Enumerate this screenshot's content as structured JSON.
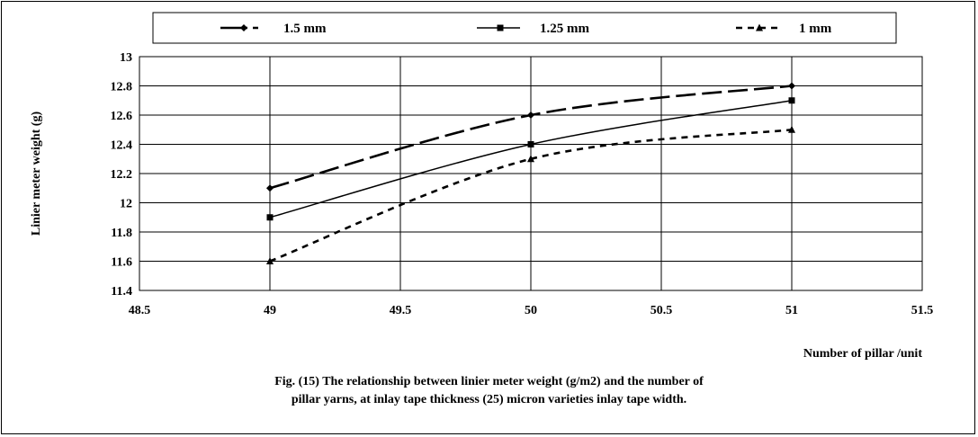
{
  "chart_data": {
    "type": "line",
    "x": [
      49,
      50,
      51
    ],
    "series": [
      {
        "name": "1.5 mm",
        "values": [
          12.1,
          12.6,
          12.8
        ],
        "style": "long-dash",
        "marker": "diamond"
      },
      {
        "name": "1.25 mm",
        "values": [
          11.9,
          12.4,
          12.7
        ],
        "style": "solid",
        "marker": "square"
      },
      {
        "name": "1 mm",
        "values": [
          11.6,
          12.3,
          12.5
        ],
        "style": "short-dash",
        "marker": "triangle"
      }
    ],
    "xlim": [
      48.5,
      51.5
    ],
    "ylim": [
      11.4,
      13
    ],
    "x_ticks": [
      "48.5",
      "49",
      "49.5",
      "50",
      "50.5",
      "51",
      "51.5"
    ],
    "y_ticks": [
      "13",
      "12.8",
      "12.6",
      "12.4",
      "12.2",
      "12",
      "11.8",
      "11.6",
      "11.4"
    ],
    "xlabel": "Number of pillar /unit",
    "ylabel": "Linier meter weight (g)",
    "grid": true,
    "legend_position": "top"
  },
  "caption": {
    "line1": "Fig. (15) The relationship between linier meter weight (g/m2) and the number of",
    "line2": "pillar yarns, at inlay tape thickness (25) micron varieties inlay tape width."
  },
  "colors": {
    "line": "#000000",
    "background": "#ffffff",
    "grid": "#000000"
  }
}
